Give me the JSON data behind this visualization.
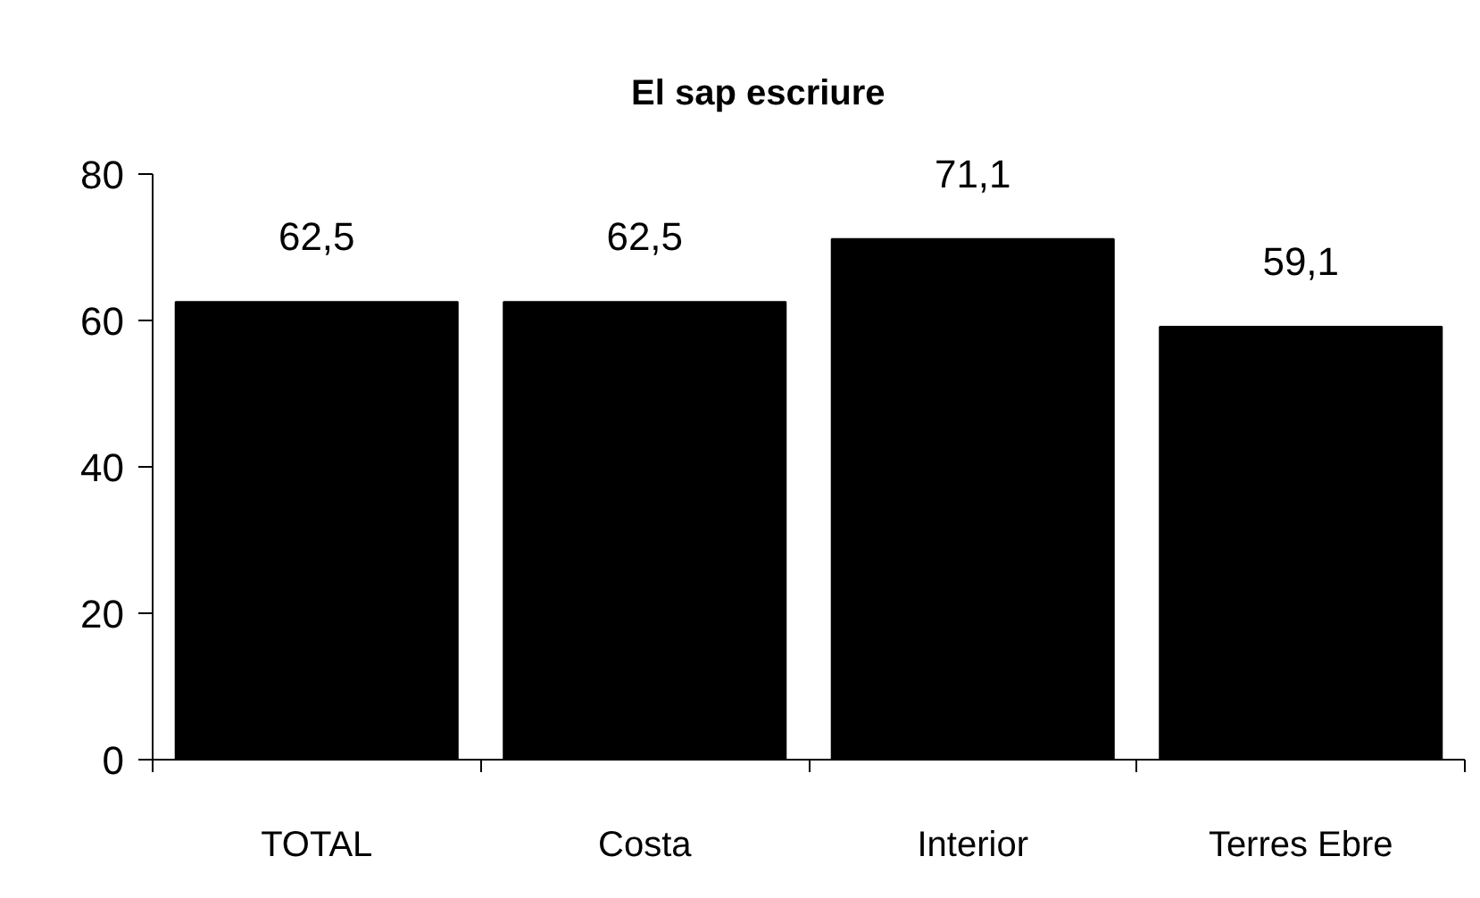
{
  "chart_data": {
    "type": "bar",
    "title": "El sap escriure",
    "categories": [
      "TOTAL",
      "Costa",
      "Interior",
      "Terres Ebre"
    ],
    "values": [
      62.5,
      62.5,
      71.1,
      59.1
    ],
    "value_labels": [
      "62,5",
      "62,5",
      "71,1",
      "59,1"
    ],
    "color": "#000000",
    "ylim": [
      0,
      80
    ],
    "yticks": [
      0,
      20,
      40,
      60,
      80
    ]
  }
}
